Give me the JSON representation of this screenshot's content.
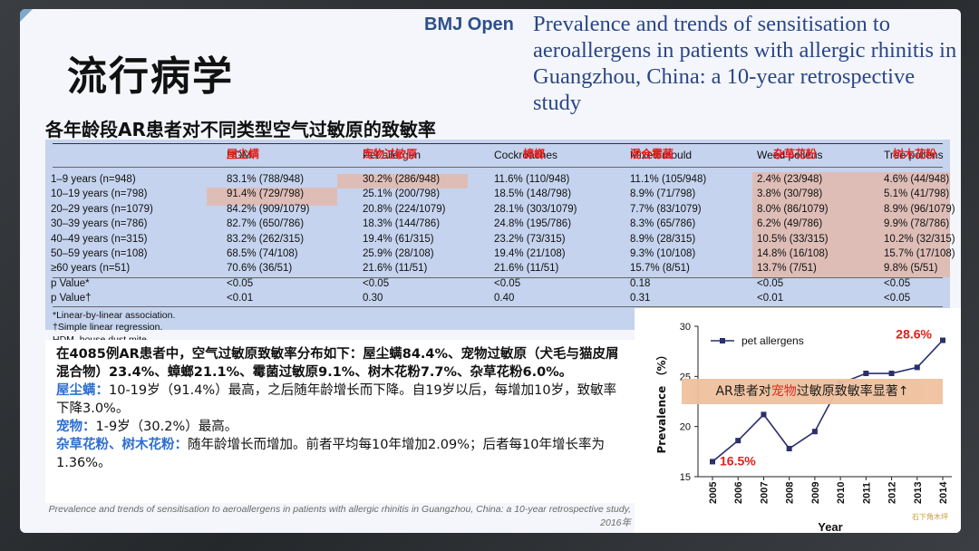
{
  "page_title": "流行病学",
  "journal": "BMJ Open",
  "paper_title": "Prevalence and trends of sensitisation to aeroallergens in patients with allergic rhinitis in Guangzhou, China: a 10-year retrospective study",
  "subtitle": "各年龄段AR患者对不同类型空气过敏原的致敏率",
  "table": {
    "headers": [
      {
        "zh": "屋尘螨",
        "en": "HDM"
      },
      {
        "zh": "宠物过敏原",
        "en": "Pet allergen"
      },
      {
        "zh": "蟑螂",
        "en": "Cockroaches"
      },
      {
        "zh": "混合霉菌",
        "en": "Mixed mould"
      },
      {
        "zh": "杂草花粉",
        "en": "Weed pollens"
      },
      {
        "zh": "树木花粉",
        "en": "Tree pollens"
      }
    ],
    "rows": [
      {
        "label": "1–9 years (n=948)",
        "cells": [
          "83.1% (788/948)",
          "30.2% (286/948)",
          "11.6% (110/948)",
          "11.1% (105/948)",
          "2.4% (23/948)",
          "4.6% (44/948)"
        ]
      },
      {
        "label": "10–19 years (n=798)",
        "cells": [
          "91.4% (729/798)",
          "25.1% (200/798)",
          "18.5% (148/798)",
          "8.9% (71/798)",
          "3.8% (30/798)",
          "5.1% (41/798)"
        ]
      },
      {
        "label": "20–29 years (n=1079)",
        "cells": [
          "84.2% (909/1079)",
          "20.8% (224/1079)",
          "28.1% (303/1079)",
          "7.7% (83/1079)",
          "8.0% (86/1079)",
          "8.9% (96/1079)"
        ]
      },
      {
        "label": "30–39 years (n=786)",
        "cells": [
          "82.7% (650/786)",
          "18.3% (144/786)",
          "24.8% (195/786)",
          "8.3% (65/786)",
          "6.2% (49/786)",
          "9.9% (78/786)"
        ]
      },
      {
        "label": "40–49 years (n=315)",
        "cells": [
          "83.2% (262/315)",
          "19.4% (61/315)",
          "23.2% (73/315)",
          "8.9% (28/315)",
          "10.5% (33/315)",
          "10.2% (32/315)"
        ]
      },
      {
        "label": "50–59 years (n=108)",
        "cells": [
          "68.5% (74/108)",
          "25.9% (28/108)",
          "19.4% (21/108)",
          "9.3% (10/108)",
          "14.8% (16/108)",
          "15.7% (17/108)"
        ]
      },
      {
        "label": "≥60 years (n=51)",
        "cells": [
          "70.6% (36/51)",
          "21.6% (11/51)",
          "21.6% (11/51)",
          "15.7% (8/51)",
          "13.7% (7/51)",
          "9.8% (5/51)"
        ]
      },
      {
        "label": "p Value*",
        "cells": [
          "<0.05",
          "<0.05",
          "<0.05",
          "0.18",
          "<0.05",
          "<0.05"
        ]
      },
      {
        "label": "p Value†",
        "cells": [
          "<0.01",
          "0.30",
          "0.40",
          "0.31",
          "<0.01",
          "<0.05"
        ]
      }
    ],
    "footnotes": [
      "*Linear-by-linear association.",
      "†Simple linear regression.",
      "HDM, house dust mite."
    ]
  },
  "summary": {
    "line1": "在4085例AR患者中，空气过敏原致敏率分布如下：屋尘螨84.4%、宠物过敏原（犬毛与猫皮屑混合物）23.4%、蟑螂21.1%、霉菌过敏原9.1%、树木花粉7.7%、杂草花粉6.0%。",
    "hdm_label": "屋尘螨：",
    "hdm_text": "10-19岁（91.4%）最高，之后随年龄增长而下降。自19岁以后，每增加10岁，致敏率下降3.0%。",
    "pet_label": "宠物：",
    "pet_text": "1-9岁（30.2%）最高。",
    "pollen_label": "杂草花粉、树木花粉：",
    "pollen_text": "随年龄增长而增加。前者平均每10年增加2.09%；后者每10年增长率为1.36%。"
  },
  "citation": "Prevalence and trends of sensitisation to aeroallergens in patients with allergic rhinitis in Guangzhou, China: a 10-year retrospective study, 2016年",
  "chart_overlay": {
    "before": "AR患者对",
    "highlight": "宠物",
    "after": "过敏原致敏率显著↑"
  },
  "chart_data": {
    "type": "line",
    "series": [
      {
        "name": "pet allergens",
        "values": [
          16.5,
          18.6,
          21.2,
          17.8,
          19.5,
          24.3,
          25.3,
          25.3,
          25.9,
          28.6
        ]
      }
    ],
    "x": [
      "2005",
      "2006",
      "2007",
      "2008",
      "2009",
      "2010",
      "2011",
      "2012",
      "2013",
      "2014"
    ],
    "xlabel": "Year",
    "ylabel": "Prevalence （%）",
    "ylim": [
      15,
      30
    ],
    "yticks": [
      "15",
      "20",
      "25",
      "30"
    ],
    "annotations": {
      "first": "16.5%",
      "last": "28.6%"
    },
    "line_color": "#2b2f6b",
    "annotation_color": "#e0201c",
    "legend_position": "top-left"
  },
  "watermark": "石下角木坪",
  "colors": {
    "paper_title": "#2a4686",
    "table_bg": "#c5d3ee",
    "highlight": "#e2b9ad",
    "red": "#e0201c",
    "blue": "#2f6fd0"
  }
}
